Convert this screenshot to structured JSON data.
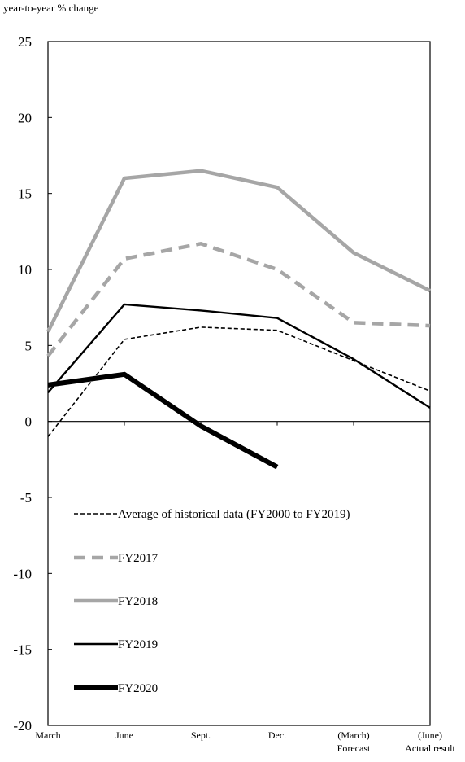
{
  "chart_data": {
    "type": "line",
    "ylabel": "year-to-year % change",
    "ylim": [
      -20,
      25
    ],
    "yticks": [
      25,
      20,
      15,
      10,
      5,
      0,
      -5,
      -10,
      -15,
      -20
    ],
    "categories": [
      [
        "March"
      ],
      [
        "June"
      ],
      [
        "Sept."
      ],
      [
        "Dec."
      ],
      [
        "(March)",
        "Forecast"
      ],
      [
        "(June)",
        "Actual result"
      ]
    ],
    "grid": false,
    "legend_position": "lower-left inside plot",
    "series": [
      {
        "name": "Average of historical data (FY2000 to FY2019)",
        "values": [
          -1.0,
          5.4,
          6.2,
          6.0,
          4.0,
          2.0
        ],
        "color": "#000000",
        "style": "dashed-thin"
      },
      {
        "name": "FY2017",
        "values": [
          4.3,
          10.7,
          11.7,
          10.0,
          6.5,
          6.3
        ],
        "color": "#a6a6a6",
        "style": "dashed-thick"
      },
      {
        "name": "FY2018",
        "values": [
          5.9,
          16.0,
          16.5,
          15.4,
          11.1,
          8.6
        ],
        "color": "#a6a6a6",
        "style": "solid-thick"
      },
      {
        "name": "FY2019",
        "values": [
          1.9,
          7.7,
          7.3,
          6.8,
          4.1,
          0.9
        ],
        "color": "#000000",
        "style": "solid"
      },
      {
        "name": "FY2020",
        "values": [
          2.4,
          3.1,
          -0.3,
          -3.0,
          null,
          null
        ],
        "color": "#000000",
        "style": "solid-heavy"
      }
    ]
  }
}
